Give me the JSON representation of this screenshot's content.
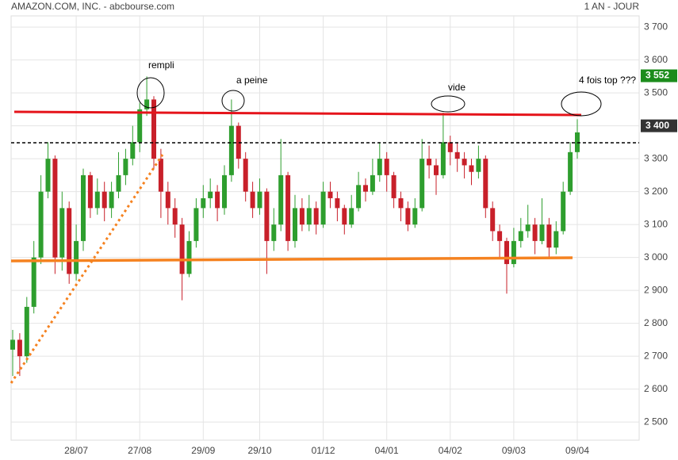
{
  "chart_data": {
    "type": "candlestick",
    "title": "AMAZON.COM, INC. - abcbourse.com",
    "period": "1 AN - JOUR",
    "categories": [
      null,
      null,
      null,
      null,
      null,
      null,
      null,
      null,
      null,
      "28/07",
      null,
      null,
      null,
      null,
      null,
      null,
      null,
      null,
      "27/08",
      null,
      null,
      null,
      null,
      null,
      null,
      null,
      null,
      "29/09",
      null,
      null,
      null,
      null,
      null,
      null,
      null,
      "29/10",
      null,
      null,
      null,
      null,
      null,
      null,
      null,
      null,
      "01/12",
      null,
      null,
      null,
      null,
      null,
      null,
      null,
      null,
      "04/01",
      null,
      null,
      null,
      null,
      null,
      null,
      null,
      null,
      "04/02",
      null,
      null,
      null,
      null,
      null,
      null,
      null,
      null,
      "09/03",
      null,
      null,
      null,
      null,
      null,
      null,
      null,
      null,
      "09/04"
    ],
    "open": [
      2720,
      2750,
      2700,
      2850,
      3000,
      3200,
      3300,
      3000,
      3150,
      2950,
      3050,
      3250,
      3150,
      3200,
      3150,
      3200,
      3250,
      3300,
      3350,
      3450,
      3480,
      3300,
      3200,
      3150,
      3100,
      2950,
      3050,
      3150,
      3180,
      3200,
      3150,
      3250,
      3400,
      3300,
      3200,
      3150,
      3200,
      3050,
      3100,
      3250,
      3050,
      3150,
      3100,
      3150,
      3100,
      3200,
      3180,
      3150,
      3100,
      3150,
      3220,
      3200,
      3250,
      3300,
      3250,
      3180,
      3150,
      3100,
      3150,
      3300,
      3280,
      3250,
      3350,
      3320,
      3300,
      3280,
      3260,
      3300,
      3150,
      3080,
      3050,
      2980,
      3050,
      3080,
      3100,
      3050,
      3100,
      3030,
      3080,
      3200,
      3320
    ],
    "high": [
      2780,
      2770,
      2880,
      3050,
      3250,
      3350,
      3310,
      3200,
      3170,
      3100,
      3270,
      3260,
      3240,
      3230,
      3230,
      3320,
      3330,
      3400,
      3470,
      3550,
      3490,
      3330,
      3230,
      3180,
      3120,
      3080,
      3180,
      3220,
      3240,
      3220,
      3280,
      3480,
      3410,
      3320,
      3230,
      3240,
      3210,
      3150,
      3360,
      3260,
      3190,
      3180,
      3190,
      3170,
      3230,
      3230,
      3200,
      3160,
      3190,
      3260,
      3240,
      3300,
      3350,
      3320,
      3260,
      3200,
      3170,
      3180,
      3360,
      3340,
      3300,
      3440,
      3370,
      3350,
      3320,
      3300,
      3340,
      3310,
      3170,
      3100,
      3060,
      3090,
      3120,
      3160,
      3120,
      3180,
      3120,
      3110,
      3230,
      3350,
      3420
    ],
    "low": [
      2640,
      2640,
      2680,
      2830,
      2980,
      3180,
      2950,
      2960,
      2920,
      2930,
      3020,
      3120,
      3130,
      3110,
      3120,
      3180,
      3220,
      3280,
      3320,
      3430,
      3270,
      3120,
      3100,
      3060,
      2870,
      2940,
      3030,
      3120,
      3150,
      3110,
      3130,
      3230,
      3270,
      3170,
      3120,
      3130,
      2950,
      3020,
      3080,
      3020,
      3030,
      3080,
      3080,
      3070,
      3090,
      3150,
      3110,
      3070,
      3090,
      3140,
      3170,
      3190,
      3230,
      3200,
      3150,
      3110,
      3080,
      3090,
      3140,
      3240,
      3190,
      3240,
      3280,
      3260,
      3240,
      3220,
      3240,
      3120,
      3050,
      3000,
      2890,
      2970,
      3030,
      3060,
      3010,
      3040,
      3000,
      3010,
      3070,
      3190,
      3300
    ],
    "close": [
      2750,
      2700,
      2850,
      3000,
      3200,
      3300,
      3000,
      3150,
      2950,
      3050,
      3250,
      3150,
      3200,
      3150,
      3200,
      3250,
      3300,
      3350,
      3450,
      3480,
      3300,
      3200,
      3150,
      3100,
      2950,
      3050,
      3150,
      3180,
      3200,
      3150,
      3250,
      3400,
      3300,
      3200,
      3150,
      3200,
      3050,
      3100,
      3250,
      3050,
      3150,
      3100,
      3150,
      3100,
      3200,
      3180,
      3150,
      3100,
      3150,
      3220,
      3200,
      3250,
      3300,
      3250,
      3180,
      3150,
      3100,
      3150,
      3300,
      3280,
      3250,
      3350,
      3320,
      3300,
      3280,
      3260,
      3300,
      3150,
      3080,
      3050,
      2980,
      3050,
      3080,
      3100,
      3050,
      3100,
      3030,
      3080,
      3200,
      3320,
      3380
    ],
    "up_color": "#2e9e2e",
    "down_color": "#c8202a",
    "ylim": [
      2445,
      3734
    ],
    "yticks": [
      {
        "value": 2500,
        "label": "2 500"
      },
      {
        "value": 2600,
        "label": "2 600"
      },
      {
        "value": 2700,
        "label": "2 700"
      },
      {
        "value": 2800,
        "label": "2 800"
      },
      {
        "value": 2900,
        "label": "2 900"
      },
      {
        "value": 3000,
        "label": "3 000"
      },
      {
        "value": 3100,
        "label": "3 100"
      },
      {
        "value": 3200,
        "label": "3 200"
      },
      {
        "value": 3300,
        "label": "3 300"
      },
      {
        "value": 3400,
        "label": "3 400"
      },
      {
        "value": 3500,
        "label": "3 500"
      },
      {
        "value": 3600,
        "label": "3 600"
      },
      {
        "value": 3700,
        "label": "3 700"
      }
    ],
    "grid": true,
    "price_tags": [
      {
        "value": 3552,
        "label": "3 552",
        "color": "#1c8c1c"
      },
      {
        "value": 3400,
        "label": "3 400",
        "color": "#333333"
      }
    ],
    "annotations": [
      "rempli",
      "a peine",
      "vide",
      "4 fois top ???"
    ]
  }
}
